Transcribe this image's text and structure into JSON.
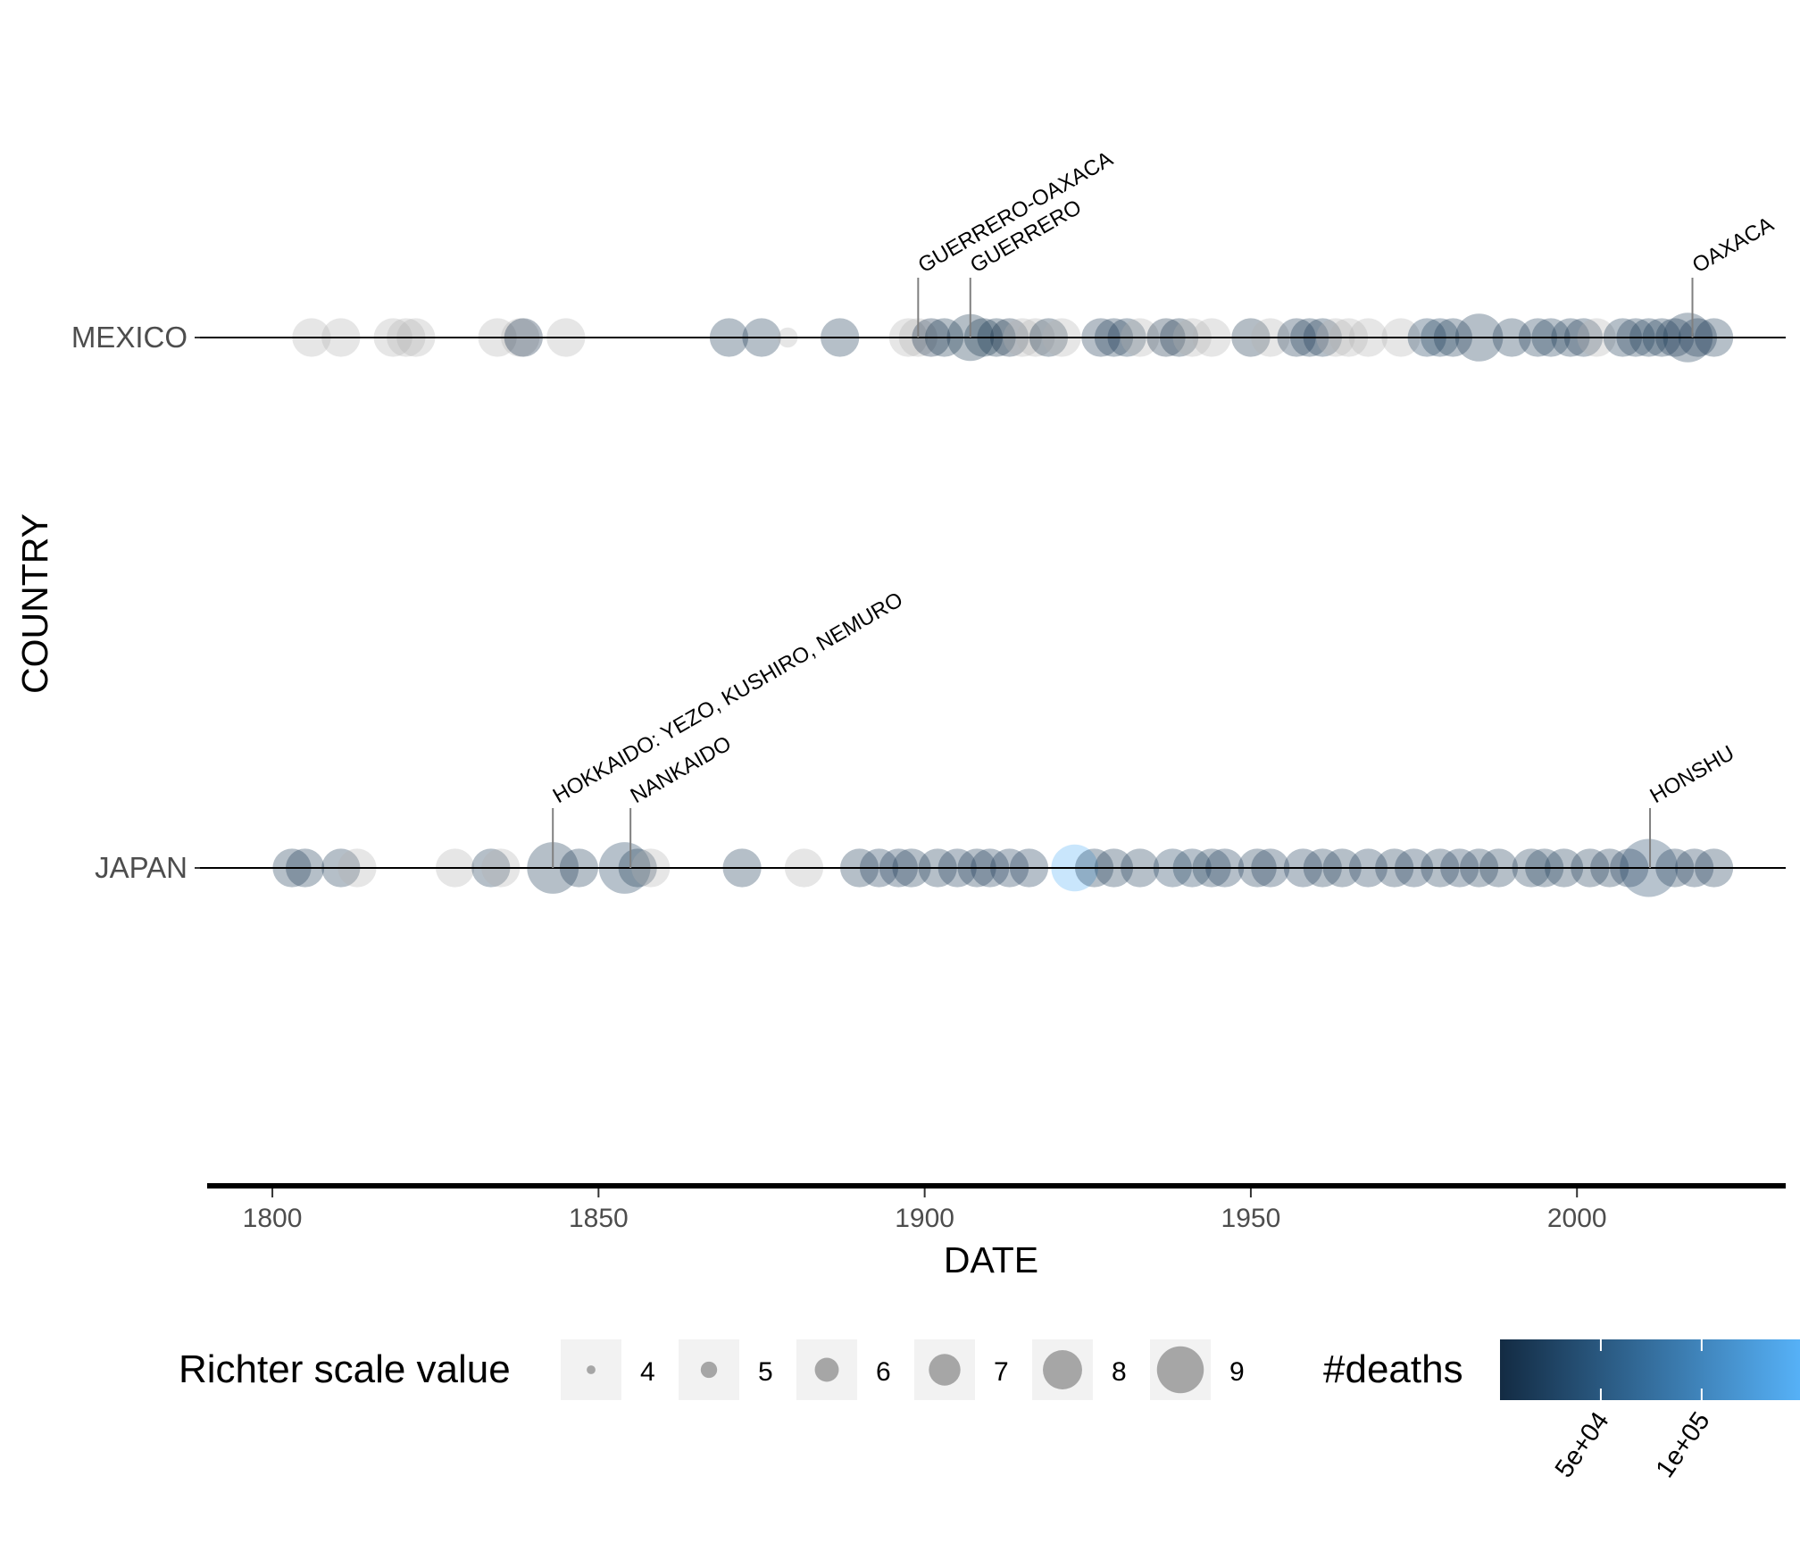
{
  "chart_data": {
    "type": "scatter",
    "title": "",
    "xlabel": "DATE",
    "ylabel": "COUNTRY",
    "xlim": [
      1790,
      2032
    ],
    "x_ticks": [
      1800,
      1850,
      1900,
      1950,
      2000
    ],
    "x_tick_labels": [
      "1800",
      "1850",
      "1900",
      "1950",
      "2000"
    ],
    "categories": [
      "MEXICO",
      "JAPAN"
    ],
    "grid": false,
    "legend": {
      "placement": "bottom",
      "size": {
        "title": "Richter scale value",
        "values": [
          4,
          5,
          6,
          7,
          8,
          9
        ],
        "labels": [
          "4",
          "5",
          "6",
          "7",
          "8",
          "9"
        ]
      },
      "color": {
        "title": "#deaths",
        "low_color": "#132b43",
        "high_color": "#56b1f7",
        "range": [
          0,
          142807
        ],
        "breaks": [
          50000,
          100000
        ],
        "labels": [
          "5e+04",
          "1e+05"
        ]
      }
    },
    "series": [
      {
        "name": "MEXICO",
        "points": [
          [
            1806,
            7.0,
            0
          ],
          [
            1810.5,
            7.0,
            0
          ],
          [
            1818.5,
            7.0,
            0
          ],
          [
            1820.5,
            7.0,
            0
          ],
          [
            1822,
            7.0,
            0
          ],
          [
            1834.5,
            7.0,
            0
          ],
          [
            1838,
            7.0,
            0
          ],
          [
            1838.5,
            7.0,
            100
          ],
          [
            1845,
            7.0,
            0
          ],
          [
            1870,
            7.0,
            4000
          ],
          [
            1875,
            7.0,
            4000
          ],
          [
            1879,
            5.0,
            0
          ],
          [
            1887,
            7.0,
            4000
          ],
          [
            1897.5,
            7.0,
            0
          ],
          [
            1899,
            7.0,
            0
          ],
          [
            1901,
            7.0,
            100
          ],
          [
            1903,
            7.0,
            2000
          ],
          [
            1907,
            7.9,
            2000
          ],
          [
            1909,
            7.0,
            2000
          ],
          [
            1911,
            7.0,
            2000
          ],
          [
            1913,
            7.0,
            500
          ],
          [
            1915,
            7.0,
            0
          ],
          [
            1917,
            7.0,
            0
          ],
          [
            1919,
            7.0,
            1000
          ],
          [
            1921,
            7.0,
            0
          ],
          [
            1927,
            7.0,
            3000
          ],
          [
            1929,
            7.0,
            4000
          ],
          [
            1931,
            7.0,
            6000
          ],
          [
            1933,
            7.0,
            0
          ],
          [
            1937,
            7.0,
            500
          ],
          [
            1939,
            7.0,
            1000
          ],
          [
            1941,
            7.0,
            0
          ],
          [
            1944,
            7.0,
            0
          ],
          [
            1950,
            7.0,
            1000
          ],
          [
            1953,
            7.0,
            0
          ],
          [
            1957,
            7.0,
            3000
          ],
          [
            1959,
            7.0,
            4000
          ],
          [
            1961,
            7.0,
            4000
          ],
          [
            1963,
            7.0,
            0
          ],
          [
            1965,
            7.0,
            0
          ],
          [
            1968,
            7.0,
            0
          ],
          [
            1973,
            7.0,
            0
          ],
          [
            1977,
            7.0,
            9000
          ],
          [
            1979,
            7.0,
            9000
          ],
          [
            1981,
            7.0,
            4000
          ],
          [
            1985,
            8.0,
            4000
          ],
          [
            1990,
            7.0,
            4000
          ],
          [
            1994,
            7.0,
            6000
          ],
          [
            1996,
            7.0,
            6000
          ],
          [
            1999,
            7.0,
            4000
          ],
          [
            2001,
            7.0,
            4000
          ],
          [
            2003,
            7.0,
            0
          ],
          [
            2007,
            7.0,
            4000
          ],
          [
            2009,
            7.0,
            6000
          ],
          [
            2011,
            7.0,
            6000
          ],
          [
            2013,
            7.0,
            4000
          ],
          [
            2015,
            7.0,
            4000
          ],
          [
            2017,
            8.2,
            4000
          ],
          [
            2018.5,
            7.0,
            4000
          ],
          [
            2021,
            7.0,
            4000
          ]
        ]
      },
      {
        "name": "JAPAN",
        "points": [
          [
            1803,
            7.0,
            4000
          ],
          [
            1805,
            7.0,
            4000
          ],
          [
            1810.5,
            7.0,
            4000
          ],
          [
            1813,
            7.0,
            0
          ],
          [
            1828,
            7.0,
            0
          ],
          [
            1833.5,
            7.0,
            4000
          ],
          [
            1835,
            7.0,
            0
          ],
          [
            1843,
            8.4,
            4000
          ],
          [
            1847,
            7.0,
            4000
          ],
          [
            1854,
            8.4,
            9000
          ],
          [
            1856,
            7.0,
            4000
          ],
          [
            1858,
            7.0,
            0
          ],
          [
            1872,
            7.0,
            4000
          ],
          [
            1881.5,
            7.0,
            0
          ],
          [
            1890,
            7.0,
            4000
          ],
          [
            1893,
            7.0,
            5000
          ],
          [
            1896,
            7.0,
            5000
          ],
          [
            1898,
            7.0,
            4000
          ],
          [
            1902,
            7.0,
            4000
          ],
          [
            1905,
            7.0,
            5000
          ],
          [
            1908,
            7.0,
            4000
          ],
          [
            1910,
            7.0,
            5000
          ],
          [
            1913,
            7.0,
            5000
          ],
          [
            1916,
            7.0,
            5000
          ],
          [
            1923,
            7.9,
            142807
          ],
          [
            1926,
            7.0,
            4000
          ],
          [
            1929,
            7.0,
            4000
          ],
          [
            1933,
            7.0,
            6000
          ],
          [
            1938,
            7.0,
            9000
          ],
          [
            1941,
            7.0,
            9000
          ],
          [
            1944,
            7.0,
            6000
          ],
          [
            1946,
            7.0,
            5000
          ],
          [
            1951,
            7.0,
            4000
          ],
          [
            1953,
            7.0,
            5000
          ],
          [
            1958,
            7.0,
            5000
          ],
          [
            1961,
            7.0,
            4000
          ],
          [
            1964,
            7.0,
            4000
          ],
          [
            1968,
            7.0,
            5000
          ],
          [
            1972,
            7.0,
            4000
          ],
          [
            1975,
            7.0,
            5000
          ],
          [
            1979,
            7.0,
            4000
          ],
          [
            1982,
            7.0,
            5000
          ],
          [
            1985,
            7.0,
            4000
          ],
          [
            1988,
            7.0,
            4000
          ],
          [
            1993,
            7.0,
            6000
          ],
          [
            1995,
            7.0,
            6434
          ],
          [
            1998,
            7.0,
            4000
          ],
          [
            2002,
            7.0,
            4000
          ],
          [
            2005,
            7.0,
            4000
          ],
          [
            2008,
            7.0,
            5000
          ],
          [
            2011,
            9.1,
            18428
          ],
          [
            2015,
            7.0,
            4000
          ],
          [
            2018,
            7.0,
            5000
          ],
          [
            2021,
            7.0,
            4000
          ]
        ]
      }
    ],
    "annotations": [
      {
        "country": "MEXICO",
        "x": 1899,
        "label": "GUERRERO-OAXACA"
      },
      {
        "country": "MEXICO",
        "x": 1907,
        "label": "GUERRERO"
      },
      {
        "country": "MEXICO",
        "x": 2017.7,
        "label": "OAXACA"
      },
      {
        "country": "JAPAN",
        "x": 1843,
        "label": "HOKKAIDO: YEZO, KUSHIRO, NEMURO"
      },
      {
        "country": "JAPAN",
        "x": 1854.9,
        "label": "NANKAIDO"
      },
      {
        "country": "JAPAN",
        "x": 2011.2,
        "label": "HONSHU"
      }
    ]
  }
}
